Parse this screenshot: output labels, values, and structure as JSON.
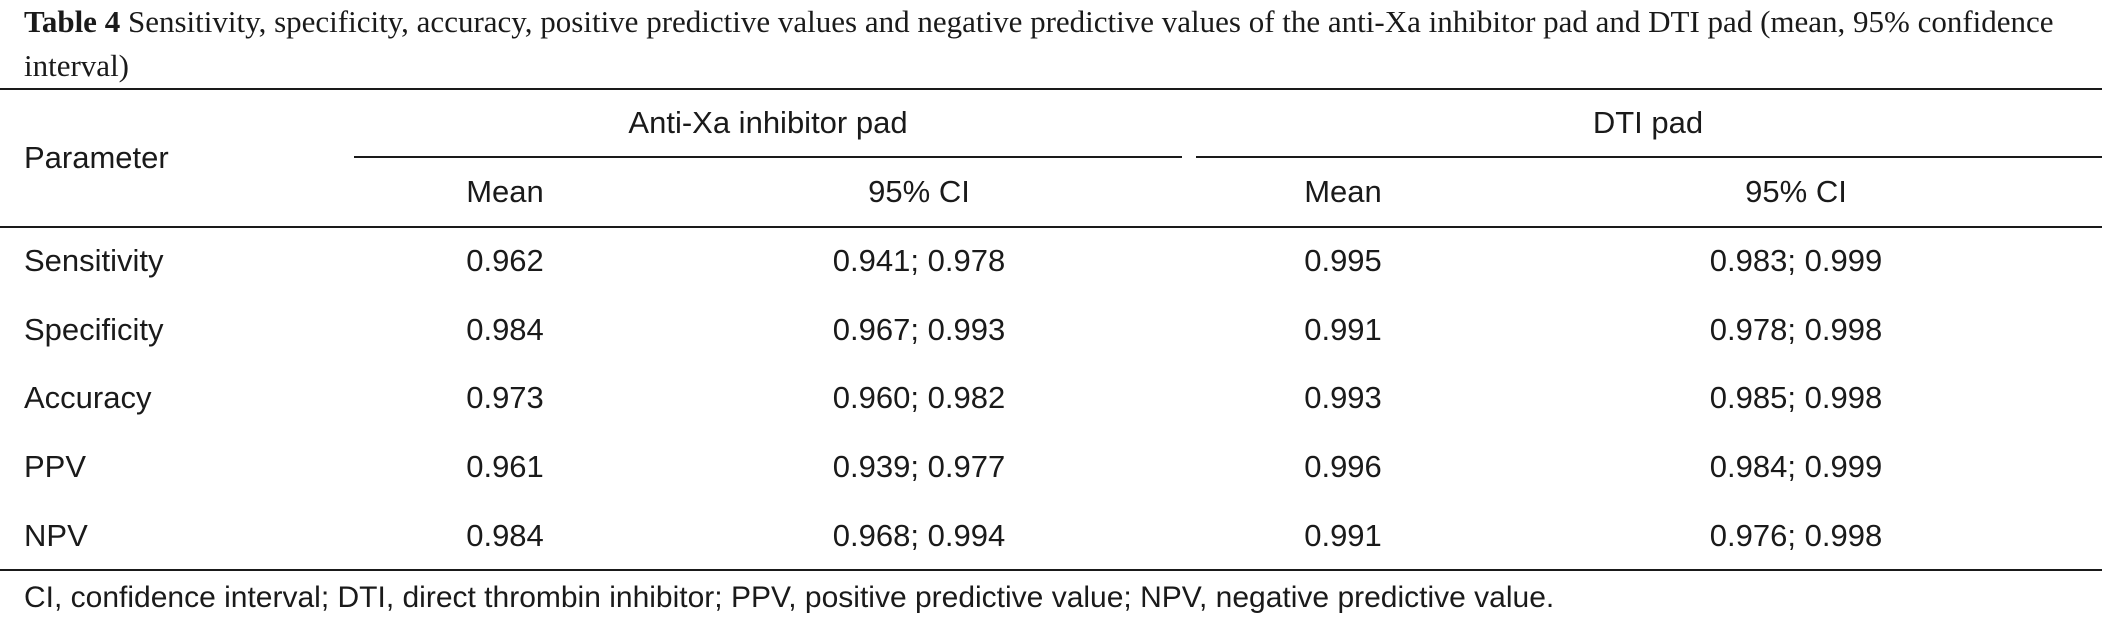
{
  "caption": {
    "label": "Table 4",
    "text": " Sensitivity, specificity, accuracy, positive predictive values and negative predictive values of the anti-Xa inhibitor pad and DTI pad (mean, 95% confidence interval)"
  },
  "table": {
    "row_header_label": "Parameter",
    "groups": [
      {
        "label": "Anti-Xa inhibitor pad",
        "cols": [
          "Mean",
          "95% CI"
        ]
      },
      {
        "label": "DTI pad",
        "cols": [
          "Mean",
          "95% CI"
        ]
      }
    ],
    "rows": [
      {
        "param": "Sensitivity",
        "a_mean": "0.962",
        "a_ci": "0.941; 0.978",
        "b_mean": "0.995",
        "b_ci": "0.983; 0.999"
      },
      {
        "param": "Specificity",
        "a_mean": "0.984",
        "a_ci": "0.967; 0.993",
        "b_mean": "0.991",
        "b_ci": "0.978; 0.998"
      },
      {
        "param": "Accuracy",
        "a_mean": "0.973",
        "a_ci": "0.960; 0.982",
        "b_mean": "0.993",
        "b_ci": "0.985; 0.998"
      },
      {
        "param": "PPV",
        "a_mean": "0.961",
        "a_ci": "0.939; 0.977",
        "b_mean": "0.996",
        "b_ci": "0.984; 0.999"
      },
      {
        "param": "NPV",
        "a_mean": "0.984",
        "a_ci": "0.968; 0.994",
        "b_mean": "0.991",
        "b_ci": "0.976; 0.998"
      }
    ]
  },
  "footnote": "CI, confidence interval; DTI, direct thrombin inhibitor; PPV, positive predictive value; NPV, negative predictive value."
}
